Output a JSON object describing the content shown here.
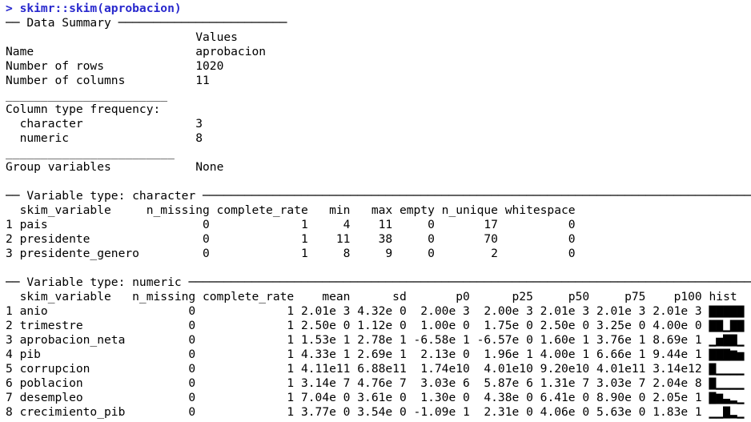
{
  "command": {
    "text": "> skimr::skim(aprobacion)",
    "color": "#2828cd"
  },
  "colors": {
    "background": "#ffffff",
    "text": "#000000",
    "command_input": "#2828cd"
  },
  "data_summary": {
    "title": "── Data Summary ────────────────────────",
    "values_header": "Values",
    "rows": [
      {
        "label": "Name",
        "value": "aprobacion"
      },
      {
        "label": "Number of rows",
        "value": "1020"
      },
      {
        "label": "Number of columns",
        "value": "11"
      }
    ],
    "separator_1": "_______________________",
    "column_type_frequency": {
      "label": "Column type frequency:",
      "rows": [
        {
          "label": "character",
          "value": "3"
        },
        {
          "label": "numeric",
          "value": "8"
        }
      ]
    },
    "separator_2": "________________________",
    "group_variables": {
      "label": "Group variables",
      "value": "None"
    }
  },
  "character_table": {
    "title": "── Variable type: character ────────────────────────────────────────────────────────────────────────────────",
    "headers": [
      "skim_variable",
      "n_missing",
      "complete_rate",
      "min",
      "max",
      "empty",
      "n_unique",
      "whitespace"
    ],
    "rows": [
      {
        "index": "1",
        "skim_variable": "pais",
        "n_missing": "0",
        "complete_rate": "1",
        "min": "4",
        "max": "11",
        "empty": "0",
        "n_unique": "17",
        "whitespace": "0"
      },
      {
        "index": "2",
        "skim_variable": "presidente",
        "n_missing": "0",
        "complete_rate": "1",
        "min": "11",
        "max": "38",
        "empty": "0",
        "n_unique": "70",
        "whitespace": "0"
      },
      {
        "index": "3",
        "skim_variable": "presidente_genero",
        "n_missing": "0",
        "complete_rate": "1",
        "min": "8",
        "max": "9",
        "empty": "0",
        "n_unique": "2",
        "whitespace": "0"
      }
    ]
  },
  "numeric_table": {
    "title": "── Variable type: numeric ──────────────────────────────────────────────────────────────────────────────────",
    "headers": [
      "skim_variable",
      "n_missing",
      "complete_rate",
      "mean",
      "sd",
      "p0",
      "p25",
      "p50",
      "p75",
      "p100",
      "hist"
    ],
    "rows": [
      {
        "index": "1",
        "skim_variable": "anio",
        "n_missing": "0",
        "complete_rate": "1",
        "mean": "2.01e 3",
        "sd": "4.32e 0",
        "p0": "2.00e 3",
        "p25": "2.00e 3",
        "p50": "2.01e 3",
        "p75": "2.01e 3",
        "p100": "2.01e 3",
        "hist": "▇▇▇▇▇"
      },
      {
        "index": "2",
        "skim_variable": "trimestre",
        "n_missing": "0",
        "complete_rate": "1",
        "mean": "2.50e 0",
        "sd": "1.12e 0",
        "p0": "1.00e 0",
        "p25": "1.75e 0",
        "p50": "2.50e 0",
        "p75": "3.25e 0",
        "p100": "4.00e 0",
        "hist": "▇▇▁▇▇"
      },
      {
        "index": "3",
        "skim_variable": "aprobacion_neta",
        "n_missing": "0",
        "complete_rate": "1",
        "mean": "1.53e 1",
        "sd": "2.78e 1",
        "p0": "-6.58e 1",
        "p25": "-6.57e 0",
        "p50": "1.60e 1",
        "p75": "3.76e 1",
        "p100": "8.69e 1",
        "hist": "▁▅▇▇▁"
      },
      {
        "index": "4",
        "skim_variable": "pib",
        "n_missing": "0",
        "complete_rate": "1",
        "mean": "4.33e 1",
        "sd": "2.69e 1",
        "p0": "2.13e 0",
        "p25": "1.96e 1",
        "p50": "4.00e 1",
        "p75": "6.66e 1",
        "p100": "9.44e 1",
        "hist": "▇▇▇▆▅"
      },
      {
        "index": "5",
        "skim_variable": "corrupcion",
        "n_missing": "0",
        "complete_rate": "1",
        "mean": "4.11e11",
        "sd": "6.88e11",
        "p0": "1.74e10",
        "p25": "4.01e10",
        "p50": "9.20e10",
        "p75": "4.01e11",
        "p100": "3.14e12",
        "hist": "▇▁▁▁▁"
      },
      {
        "index": "6",
        "skim_variable": "poblacion",
        "n_missing": "0",
        "complete_rate": "1",
        "mean": "3.14e 7",
        "sd": "4.76e 7",
        "p0": "3.03e 6",
        "p25": "5.87e 6",
        "p50": "1.31e 7",
        "p75": "3.03e 7",
        "p100": "2.04e 8",
        "hist": "▇▁▁▁▁"
      },
      {
        "index": "7",
        "skim_variable": "desempleo",
        "n_missing": "0",
        "complete_rate": "1",
        "mean": "7.04e 0",
        "sd": "3.61e 0",
        "p0": "1.30e 0",
        "p25": "4.38e 0",
        "p50": "6.41e 0",
        "p75": "8.90e 0",
        "p100": "2.05e 1",
        "hist": "▇▆▃▂▁"
      },
      {
        "index": "8",
        "skim_variable": "crecimiento_pib",
        "n_missing": "0",
        "complete_rate": "1",
        "mean": "3.77e 0",
        "sd": "3.54e 0",
        "p0": "-1.09e 1",
        "p25": "2.31e 0",
        "p50": "4.06e 0",
        "p75": "5.63e 0",
        "p100": "1.83e 1",
        "hist": "▁▁▇▂▁"
      }
    ]
  }
}
